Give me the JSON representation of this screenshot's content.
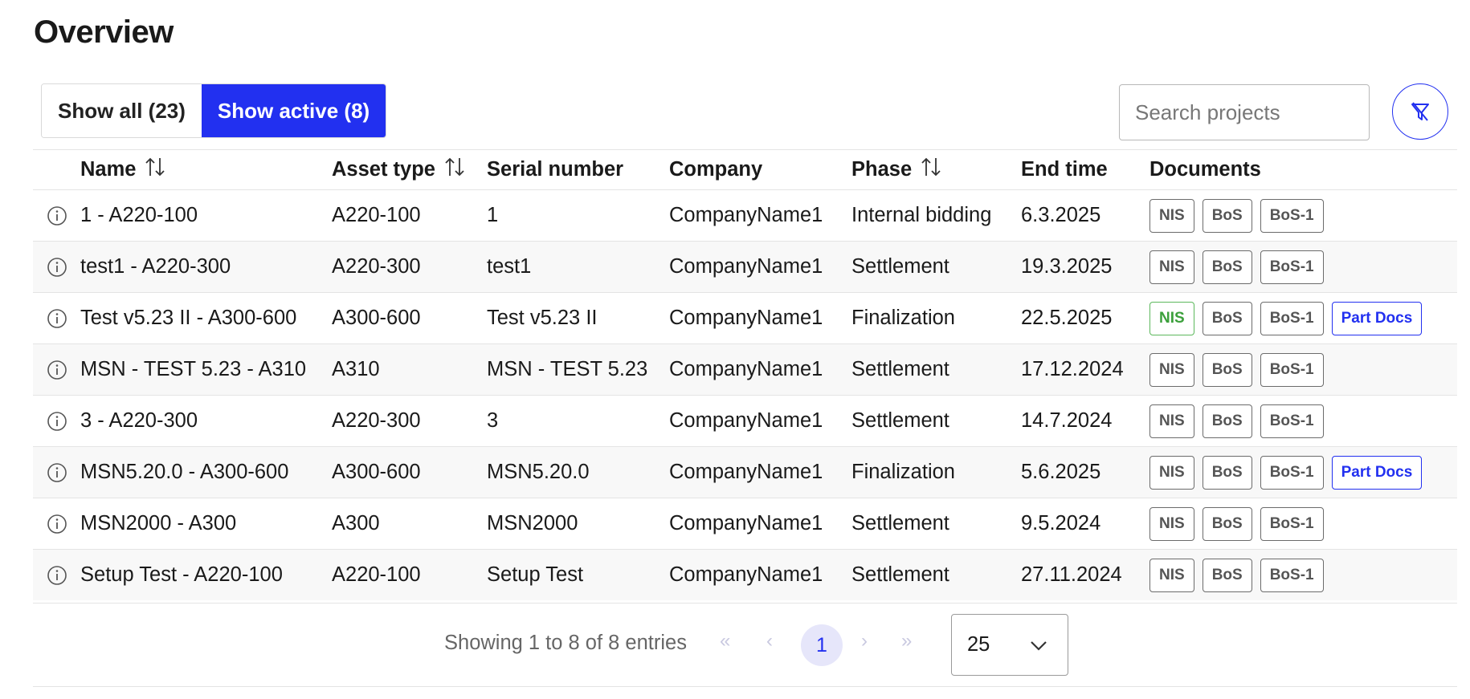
{
  "page": {
    "title": "Overview"
  },
  "toggle": {
    "all_label": "Show all (23)",
    "active_label": "Show active (8)"
  },
  "search": {
    "placeholder": "Search projects"
  },
  "table": {
    "headers": {
      "name": "Name",
      "asset_type": "Asset type",
      "serial_number": "Serial number",
      "company": "Company",
      "phase": "Phase",
      "end_time": "End time",
      "documents": "Documents"
    },
    "rows": [
      {
        "name": "1 - A220-100",
        "asset_type": "A220-100",
        "serial": "1",
        "company": "CompanyName1",
        "phase": "Internal bidding",
        "end": "6.3.2025",
        "docs": [
          {
            "label": "NIS",
            "style": "gray"
          },
          {
            "label": "BoS",
            "style": "gray"
          },
          {
            "label": "BoS-1",
            "style": "gray"
          }
        ]
      },
      {
        "name": "test1 - A220-300",
        "asset_type": "A220-300",
        "serial": "test1",
        "company": "CompanyName1",
        "phase": "Settlement",
        "end": "19.3.2025",
        "docs": [
          {
            "label": "NIS",
            "style": "gray"
          },
          {
            "label": "BoS",
            "style": "gray"
          },
          {
            "label": "BoS-1",
            "style": "gray"
          }
        ]
      },
      {
        "name": "Test v5.23 II - A300-600",
        "asset_type": "A300-600",
        "serial": "Test v5.23 II",
        "company": "CompanyName1",
        "phase": "Finalization",
        "end": "22.5.2025",
        "docs": [
          {
            "label": "NIS",
            "style": "green"
          },
          {
            "label": "BoS",
            "style": "gray"
          },
          {
            "label": "BoS-1",
            "style": "gray"
          },
          {
            "label": "Part Docs",
            "style": "blue"
          }
        ]
      },
      {
        "name": "MSN - TEST 5.23 - A310",
        "asset_type": "A310",
        "serial": "MSN - TEST 5.23",
        "company": "CompanyName1",
        "phase": "Settlement",
        "end": "17.12.2024",
        "docs": [
          {
            "label": "NIS",
            "style": "gray"
          },
          {
            "label": "BoS",
            "style": "gray"
          },
          {
            "label": "BoS-1",
            "style": "gray"
          }
        ]
      },
      {
        "name": "3 - A220-300",
        "asset_type": "A220-300",
        "serial": "3",
        "company": "CompanyName1",
        "phase": "Settlement",
        "end": "14.7.2024",
        "docs": [
          {
            "label": "NIS",
            "style": "gray"
          },
          {
            "label": "BoS",
            "style": "gray"
          },
          {
            "label": "BoS-1",
            "style": "gray"
          }
        ]
      },
      {
        "name": "MSN5.20.0 - A300-600",
        "asset_type": "A300-600",
        "serial": "MSN5.20.0",
        "company": "CompanyName1",
        "phase": "Finalization",
        "end": "5.6.2025",
        "docs": [
          {
            "label": "NIS",
            "style": "gray"
          },
          {
            "label": "BoS",
            "style": "gray"
          },
          {
            "label": "BoS-1",
            "style": "gray"
          },
          {
            "label": "Part Docs",
            "style": "blue"
          }
        ]
      },
      {
        "name": "MSN2000 - A300",
        "asset_type": "A300",
        "serial": "MSN2000",
        "company": "CompanyName1",
        "phase": "Settlement",
        "end": "9.5.2024",
        "docs": [
          {
            "label": "NIS",
            "style": "gray"
          },
          {
            "label": "BoS",
            "style": "gray"
          },
          {
            "label": "BoS-1",
            "style": "gray"
          }
        ]
      },
      {
        "name": "Setup Test - A220-100",
        "asset_type": "A220-100",
        "serial": "Setup Test",
        "company": "CompanyName1",
        "phase": "Settlement",
        "end": "27.11.2024",
        "docs": [
          {
            "label": "NIS",
            "style": "gray"
          },
          {
            "label": "BoS",
            "style": "gray"
          },
          {
            "label": "BoS-1",
            "style": "gray"
          }
        ]
      }
    ]
  },
  "pagination": {
    "entries_text": "Showing 1 to 8 of 8 entries",
    "first": "«",
    "prev": "‹",
    "current": "1",
    "next": "›",
    "last": "»",
    "page_size": "25"
  },
  "colors": {
    "accent": "#2230f0",
    "green": "#3ca03c",
    "badge_gray": "#555555"
  },
  "icons": {
    "row_info": "info-circle-icon",
    "filter": "filter-off-icon",
    "sort": "sort-arrows-icon",
    "dropdown": "chevron-down-icon"
  }
}
